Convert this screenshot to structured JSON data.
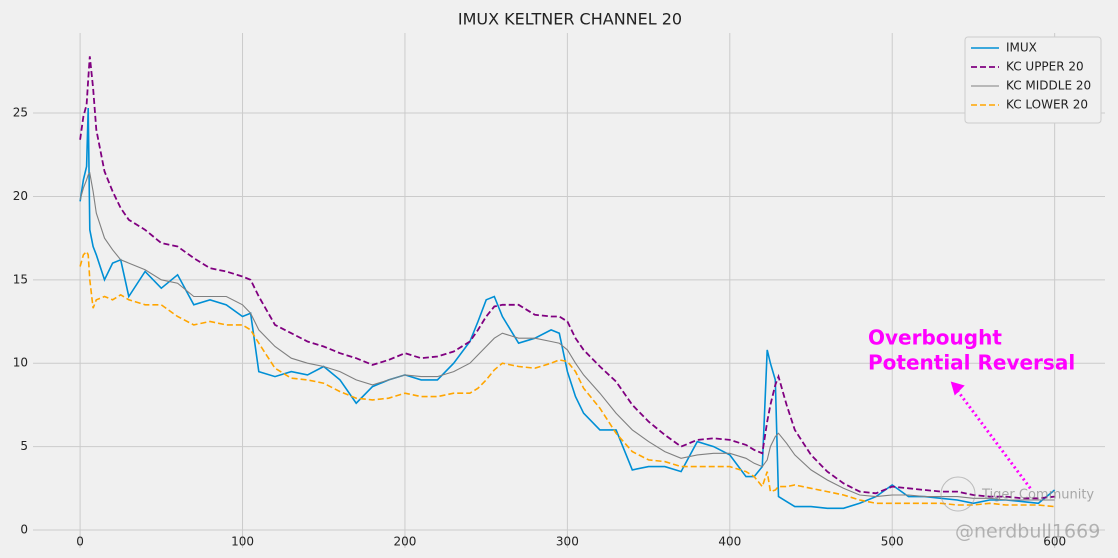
{
  "chart_data": {
    "type": "line",
    "title": "IMUX KELTNER CHANNEL 20",
    "x": [
      0,
      2,
      4,
      5,
      6,
      8,
      10,
      15,
      20,
      25,
      30,
      40,
      50,
      60,
      70,
      80,
      90,
      100,
      105,
      110,
      120,
      130,
      140,
      150,
      160,
      170,
      180,
      190,
      200,
      210,
      220,
      230,
      240,
      245,
      250,
      255,
      260,
      270,
      280,
      290,
      295,
      300,
      305,
      310,
      320,
      330,
      340,
      350,
      360,
      370,
      380,
      390,
      400,
      410,
      415,
      420,
      423,
      425,
      428,
      430,
      435,
      440,
      450,
      460,
      470,
      480,
      490,
      500,
      510,
      520,
      530,
      540,
      550,
      560,
      570,
      580,
      590,
      600
    ],
    "series": [
      {
        "name": "IMUX",
        "color": "#008fd5",
        "dash": "none",
        "width": 1.6,
        "values": [
          19.7,
          21,
          21.8,
          25.3,
          18,
          17,
          16.5,
          15,
          16,
          16.2,
          14,
          15.5,
          14.5,
          15.3,
          13.5,
          13.8,
          13.5,
          12.8,
          13,
          9.5,
          9.2,
          9.5,
          9.3,
          9.8,
          9,
          7.6,
          8.6,
          9,
          9.3,
          9,
          9,
          10,
          11.3,
          12.5,
          13.8,
          14,
          12.8,
          11.2,
          11.5,
          12,
          11.8,
          9.5,
          8,
          7,
          6,
          6,
          3.6,
          3.8,
          3.8,
          3.5,
          5.3,
          5,
          4.5,
          3.2,
          3.2,
          3.8,
          10.8,
          10,
          9,
          2,
          1.7,
          1.4,
          1.4,
          1.3,
          1.3,
          1.6,
          2,
          2.7,
          2,
          2,
          1.9,
          1.8,
          1.6,
          1.8,
          1.8,
          1.7,
          1.6,
          2.4
        ]
      },
      {
        "name": "KC UPPER 20",
        "color": "#800080",
        "dash": "dashed",
        "width": 1.8,
        "values": [
          23.4,
          24.8,
          25.5,
          27,
          28.4,
          26.5,
          24,
          21.5,
          20.3,
          19.3,
          18.6,
          18,
          17.2,
          17,
          16.3,
          15.7,
          15.5,
          15.2,
          15,
          14,
          12.3,
          11.8,
          11.3,
          11,
          10.6,
          10.3,
          9.9,
          10.2,
          10.6,
          10.3,
          10.4,
          10.7,
          11.3,
          12,
          12.8,
          13.4,
          13.5,
          13.5,
          12.9,
          12.8,
          12.8,
          12.5,
          11.5,
          10.8,
          9.8,
          8.9,
          7.5,
          6.5,
          5.7,
          5,
          5.4,
          5.5,
          5.4,
          5.1,
          4.8,
          4.6,
          6.5,
          7.5,
          8.7,
          9.2,
          7.5,
          6,
          4.5,
          3.5,
          2.8,
          2.3,
          2.2,
          2.6,
          2.5,
          2.4,
          2.3,
          2.3,
          2.1,
          2,
          2,
          1.9,
          1.9,
          2
        ]
      },
      {
        "name": "KC MIDDLE 20",
        "color": "#808080",
        "dash": "none",
        "width": 1.1,
        "values": [
          19.8,
          20.5,
          21,
          21.3,
          21.4,
          20.3,
          19,
          17.5,
          16.8,
          16.2,
          16,
          15.6,
          15,
          14.8,
          14,
          14,
          14,
          13.5,
          13,
          12,
          11,
          10.3,
          10,
          9.8,
          9.5,
          9,
          8.7,
          9,
          9.3,
          9.2,
          9.2,
          9.5,
          10,
          10.5,
          11,
          11.5,
          11.8,
          11.5,
          11.5,
          11.3,
          11.2,
          10.8,
          10,
          9.3,
          8.2,
          7,
          6,
          5.3,
          4.7,
          4.3,
          4.5,
          4.6,
          4.6,
          4.3,
          4,
          3.8,
          4.2,
          5,
          5.6,
          5.8,
          5.2,
          4.5,
          3.6,
          3,
          2.5,
          2.1,
          2,
          2.1,
          2.1,
          2,
          2,
          2,
          1.9,
          1.9,
          1.8,
          1.8,
          1.8,
          1.8
        ]
      },
      {
        "name": "KC LOWER 20",
        "color": "#ffa500",
        "dash": "dashed",
        "width": 1.6,
        "values": [
          15.8,
          16.5,
          16.7,
          16.5,
          15,
          13.3,
          13.8,
          14,
          13.8,
          14.1,
          13.8,
          13.5,
          13.5,
          12.8,
          12.3,
          12.5,
          12.3,
          12.3,
          12,
          11.2,
          9.7,
          9.1,
          9,
          8.8,
          8.3,
          7.9,
          7.8,
          7.9,
          8.2,
          8,
          8,
          8.2,
          8.2,
          8.5,
          9,
          9.6,
          10,
          9.8,
          9.7,
          10,
          10.2,
          10.1,
          9.5,
          8.5,
          7.3,
          5.8,
          4.7,
          4.2,
          4.1,
          3.8,
          3.8,
          3.8,
          3.8,
          3.5,
          3.2,
          2.6,
          3.5,
          2.3,
          2.4,
          2.6,
          2.6,
          2.7,
          2.5,
          2.3,
          2.1,
          1.8,
          1.6,
          1.6,
          1.6,
          1.6,
          1.6,
          1.5,
          1.5,
          1.6,
          1.5,
          1.5,
          1.5,
          1.4
        ]
      }
    ],
    "xlim": [
      -29,
      631
    ],
    "ylim": [
      -1.08,
      29.8
    ],
    "xticks": [
      0,
      100,
      200,
      300,
      400,
      500,
      600
    ],
    "yticks": [
      0,
      5,
      10,
      15,
      20,
      25
    ],
    "grid": true,
    "legend": "upper right",
    "annotation": {
      "lines": [
        "Overbought",
        "Potential Reversal"
      ],
      "color": "#ff00ff",
      "x": 585,
      "y": 2.5,
      "head_x": 536,
      "head_y": 8.9
    },
    "watermark": [
      "Tiger Community",
      "@nerdbull1669"
    ]
  }
}
